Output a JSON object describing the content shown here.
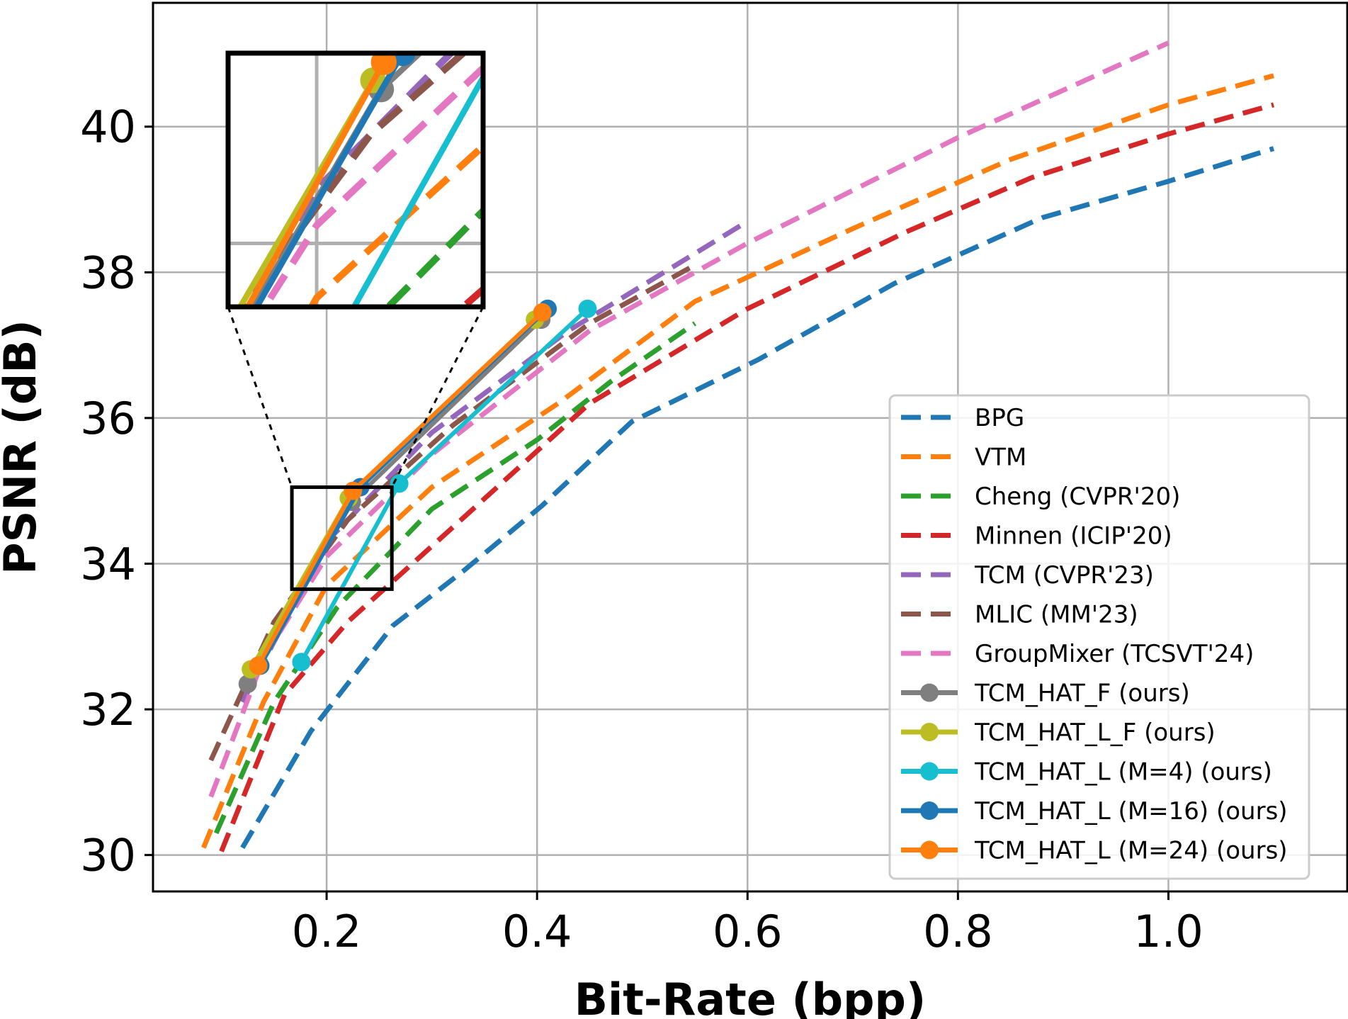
{
  "chart_data": {
    "type": "line",
    "title": "",
    "xlabel": "Bit-Rate (bpp)",
    "ylabel": "PSNR (dB)",
    "xlim": [
      0.035,
      1.17
    ],
    "ylim": [
      29.5,
      41.7
    ],
    "xticks": [
      0.2,
      0.4,
      0.6,
      0.8,
      1.0
    ],
    "xtick_labels": [
      "0.2",
      "0.4",
      "0.6",
      "0.8",
      "1.0"
    ],
    "yticks": [
      30,
      32,
      34,
      36,
      38,
      40
    ],
    "ytick_labels": [
      "30",
      "32",
      "34",
      "36",
      "38",
      "40"
    ],
    "grid": true,
    "legend_position": "lower-right",
    "series": [
      {
        "name": "BPG",
        "color": "#1f77b4",
        "dashed": true,
        "marker": false,
        "x": [
          0.12,
          0.185,
          0.263,
          0.33,
          0.405,
          0.49,
          0.61,
          0.74,
          0.88,
          1.0,
          1.1
        ],
        "y": [
          30.1,
          31.7,
          33.15,
          33.9,
          34.8,
          35.95,
          36.8,
          37.85,
          38.75,
          39.25,
          39.7
        ]
      },
      {
        "name": "VTM",
        "color": "#ff7f0e",
        "dashed": true,
        "marker": false,
        "x": [
          0.083,
          0.14,
          0.2,
          0.3,
          0.42,
          0.55,
          0.7,
          0.85,
          1.0,
          1.1
        ],
        "y": [
          30.1,
          32.1,
          33.7,
          35.05,
          36.2,
          37.6,
          38.6,
          39.55,
          40.3,
          40.7
        ]
      },
      {
        "name": "Cheng (CVPR'20)",
        "color": "#2ca02c",
        "dashed": true,
        "marker": false,
        "x": [
          0.095,
          0.15,
          0.21,
          0.3,
          0.4,
          0.47,
          0.55
        ],
        "y": [
          30.3,
          32.1,
          33.4,
          34.75,
          35.7,
          36.5,
          37.3
        ]
      },
      {
        "name": "Minnen (ICIP'20)",
        "color": "#d62728",
        "dashed": true,
        "marker": false,
        "x": [
          0.1,
          0.16,
          0.22,
          0.32,
          0.45,
          0.6,
          0.75,
          0.87,
          1.0,
          1.1
        ],
        "y": [
          30.05,
          32.2,
          33.2,
          34.5,
          36.2,
          37.5,
          38.55,
          39.3,
          39.9,
          40.3
        ]
      },
      {
        "name": "TCM (CVPR'23)",
        "color": "#9467bd",
        "dashed": true,
        "marker": false,
        "x": [
          0.12,
          0.2,
          0.3,
          0.43,
          0.6
        ],
        "y": [
          32.1,
          34.3,
          35.8,
          37.2,
          38.7
        ]
      },
      {
        "name": "MLIC (MM'23)",
        "color": "#8c564b",
        "dashed": true,
        "marker": false,
        "x": [
          0.09,
          0.15,
          0.22,
          0.32,
          0.45,
          0.55
        ],
        "y": [
          31.3,
          33.2,
          34.6,
          35.9,
          37.3,
          38.1
        ]
      },
      {
        "name": "GroupMixer (TCSVT'24)",
        "color": "#e377c2",
        "dashed": true,
        "marker": false,
        "x": [
          0.09,
          0.14,
          0.2,
          0.3,
          0.45,
          0.6,
          0.8,
          1.0
        ],
        "y": [
          30.8,
          32.7,
          34.1,
          35.5,
          37.2,
          38.4,
          39.85,
          41.15
        ]
      },
      {
        "name": "TCM_HAT_F (ours)",
        "color": "#7f7f7f",
        "dashed": false,
        "marker": true,
        "x": [
          0.125,
          0.224,
          0.404
        ],
        "y": [
          32.35,
          34.85,
          37.35
        ]
      },
      {
        "name": "TCM_HAT_L_F (ours)",
        "color": "#bcbd22",
        "dashed": false,
        "marker": true,
        "x": [
          0.128,
          0.221,
          0.398
        ],
        "y": [
          32.55,
          34.9,
          37.35
        ]
      },
      {
        "name": "TCM_HAT_L (M=4) (ours)",
        "color": "#17becf",
        "dashed": false,
        "marker": true,
        "x": [
          0.176,
          0.269,
          0.448
        ],
        "y": [
          32.65,
          35.1,
          37.5
        ]
      },
      {
        "name": "TCM_HAT_L (M=16) (ours)",
        "color": "#1f77b4",
        "dashed": false,
        "marker": true,
        "x": [
          0.137,
          0.232,
          0.41
        ],
        "y": [
          32.6,
          35.05,
          37.5
        ]
      },
      {
        "name": "TCM_HAT_L (M=24) (ours)",
        "color": "#ff7f0e",
        "dashed": false,
        "marker": true,
        "x": [
          0.135,
          0.225,
          0.405
        ],
        "y": [
          32.6,
          35.0,
          37.45
        ]
      }
    ],
    "inset": {
      "source_xlim": [
        0.167,
        0.262
      ],
      "source_ylim": [
        33.65,
        35.05
      ],
      "grid_x": [
        0.2
      ],
      "grid_y": [
        34.0
      ]
    }
  }
}
